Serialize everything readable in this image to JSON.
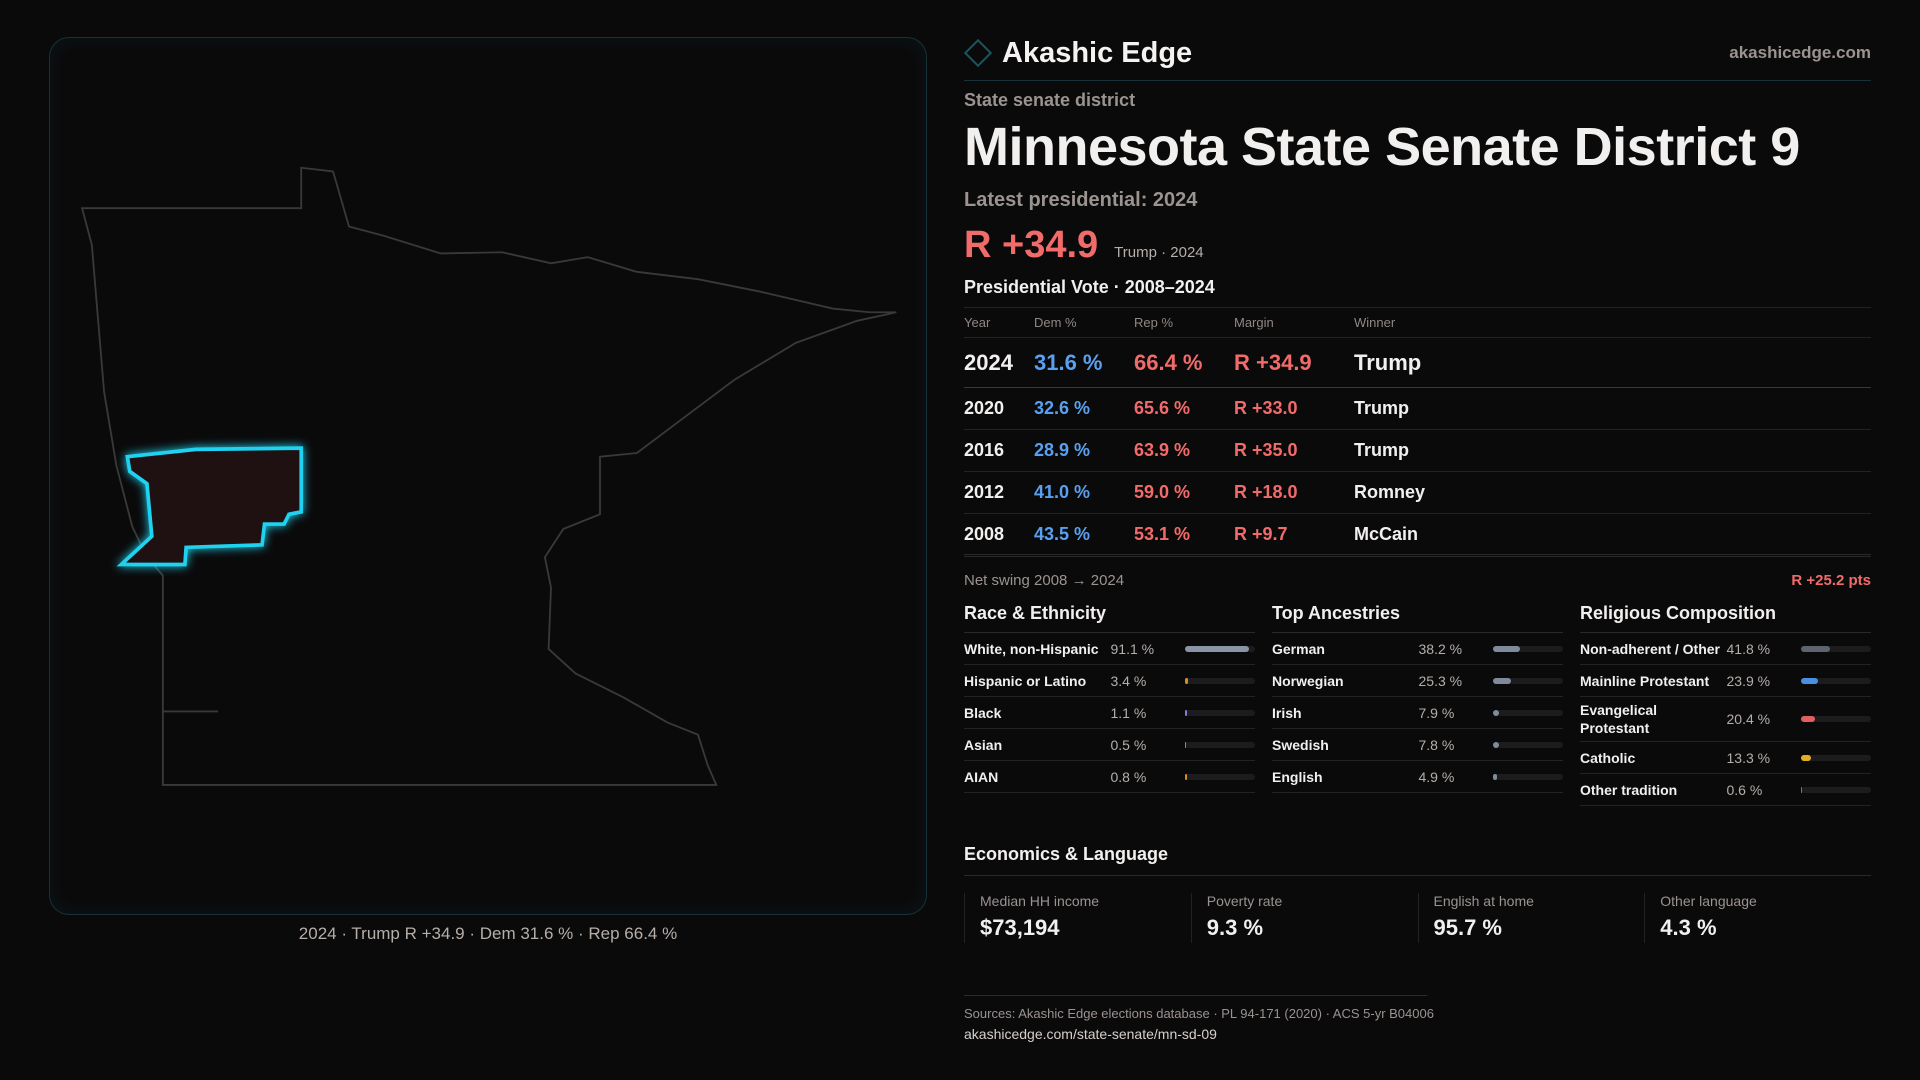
{
  "brand": {
    "name": "Akashic Edge",
    "site": "akashicedge.com"
  },
  "header": {
    "kicker": "State senate district",
    "title": "Minnesota State Senate District 9",
    "latest": "Latest presidential: 2024",
    "margin": "R +34.9",
    "margin_sub": "Trump · 2024"
  },
  "map": {
    "caption": "2024 · Trump R +34.9 · Dem 31.6 % · Rep 66.4 %",
    "highlight_color": "#1fd3f0",
    "fill_color": "#1f1012"
  },
  "vote": {
    "title": "Presidential Vote · 2008–2024",
    "headers": [
      "Year",
      "Dem %",
      "Rep %",
      "Margin",
      "Winner"
    ],
    "rows": [
      {
        "year": "2024",
        "dem": "31.6 %",
        "rep": "66.4 %",
        "margin": "R +34.9",
        "winner": "Trump"
      },
      {
        "year": "2020",
        "dem": "32.6 %",
        "rep": "65.6 %",
        "margin": "R +33.0",
        "winner": "Trump"
      },
      {
        "year": "2016",
        "dem": "28.9 %",
        "rep": "63.9 %",
        "margin": "R +35.0",
        "winner": "Trump"
      },
      {
        "year": "2012",
        "dem": "41.0 %",
        "rep": "59.0 %",
        "margin": "R +18.0",
        "winner": "Romney"
      },
      {
        "year": "2008",
        "dem": "43.5 %",
        "rep": "53.1 %",
        "margin": "R +9.7",
        "winner": "McCain"
      }
    ],
    "swing_label": "Net swing 2008 → 2024",
    "swing_value": "R +25.2 pts"
  },
  "sections": [
    {
      "title": "Race & Ethnicity",
      "items": [
        {
          "label": "White, non-Hispanic",
          "value": "91.1 %",
          "pct": 91.1,
          "color": "#8a94a6"
        },
        {
          "label": "Hispanic or Latino",
          "value": "3.4 %",
          "pct": 3.4,
          "color": "#d98a2b"
        },
        {
          "label": "Black",
          "value": "1.1 %",
          "pct": 1.1,
          "color": "#8a7ad8"
        },
        {
          "label": "Asian",
          "value": "0.5 %",
          "pct": 0.5,
          "color": "#3ab0a0"
        },
        {
          "label": "AIAN",
          "value": "0.8 %",
          "pct": 0.8,
          "color": "#d98a2b"
        }
      ]
    },
    {
      "title": "Top Ancestries",
      "items": [
        {
          "label": "German",
          "value": "38.2 %",
          "pct": 38.2,
          "color": "#7f8a9c"
        },
        {
          "label": "Norwegian",
          "value": "25.3 %",
          "pct": 25.3,
          "color": "#7f8a9c"
        },
        {
          "label": "Irish",
          "value": "7.9 %",
          "pct": 7.9,
          "color": "#7f8a9c"
        },
        {
          "label": "Swedish",
          "value": "7.8 %",
          "pct": 7.8,
          "color": "#7f8a9c"
        },
        {
          "label": "English",
          "value": "4.9 %",
          "pct": 4.9,
          "color": "#7f8a9c"
        }
      ]
    },
    {
      "title": "Religious Composition",
      "items": [
        {
          "label": "Non-adherent / Other",
          "value": "41.8 %",
          "pct": 41.8,
          "color": "#5d6470"
        },
        {
          "label": "Mainline Protestant",
          "value": "23.9 %",
          "pct": 23.9,
          "color": "#4a8fe0"
        },
        {
          "label": "Evangelical Protestant",
          "value": "20.4 %",
          "pct": 20.4,
          "color": "#e06060"
        },
        {
          "label": "Catholic",
          "value": "13.3 %",
          "pct": 13.3,
          "color": "#e0b020"
        },
        {
          "label": "Other tradition",
          "value": "0.6 %",
          "pct": 0.6,
          "color": "#777777"
        }
      ]
    }
  ],
  "economics": {
    "title": "Economics & Language",
    "cards": [
      {
        "label": "Median HH income",
        "value": "$73,194"
      },
      {
        "label": "Poverty rate",
        "value": "9.3 %"
      },
      {
        "label": "English at home",
        "value": "95.7 %"
      },
      {
        "label": "Other language",
        "value": "4.3 %"
      }
    ]
  },
  "footer": {
    "sources": "Sources: Akashic Edge elections database · PL 94-171 (2020) · ACS 5-yr B04006",
    "url": "akashicedge.com/state-senate/mn-sd-09"
  },
  "colors": {
    "rep": "#f26b6b",
    "dem": "#5aa0f0",
    "background": "#0b0a0b"
  }
}
